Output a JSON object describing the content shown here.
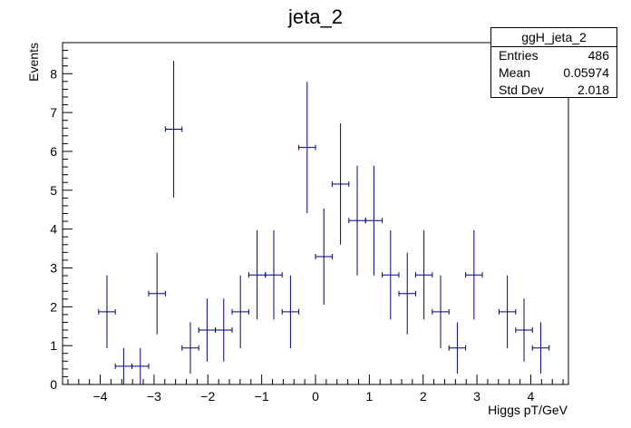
{
  "chart_data": {
    "type": "scatter",
    "title": "jeta_2",
    "xlabel": "Higgs pT/GeV",
    "ylabel": "Events",
    "xlim": [
      -4.7,
      4.7
    ],
    "ylim": [
      0,
      8.8
    ],
    "x_ticks": [
      -4,
      -3,
      -2,
      -1,
      0,
      1,
      2,
      3,
      4
    ],
    "y_ticks": [
      0,
      1,
      2,
      3,
      4,
      5,
      6,
      7,
      8
    ],
    "grid": false,
    "bin_half_width": 0.155,
    "series": [
      {
        "name": "ggH_jeta_2",
        "color": "#000080",
        "points": [
          {
            "x": -3.875,
            "y": 1.87,
            "err": 0.94
          },
          {
            "x": -3.565,
            "y": 0.47,
            "err": 0.47
          },
          {
            "x": -3.255,
            "y": 0.47,
            "err": 0.47
          },
          {
            "x": -2.945,
            "y": 2.34,
            "err": 1.05
          },
          {
            "x": -2.635,
            "y": 6.57,
            "err": 1.76
          },
          {
            "x": -2.325,
            "y": 0.94,
            "err": 0.66
          },
          {
            "x": -2.015,
            "y": 1.4,
            "err": 0.81
          },
          {
            "x": -1.705,
            "y": 1.4,
            "err": 0.81
          },
          {
            "x": -1.395,
            "y": 1.87,
            "err": 0.94
          },
          {
            "x": -1.085,
            "y": 2.82,
            "err": 1.15
          },
          {
            "x": -0.775,
            "y": 2.82,
            "err": 1.15
          },
          {
            "x": -0.465,
            "y": 1.87,
            "err": 0.94
          },
          {
            "x": -0.155,
            "y": 6.1,
            "err": 1.69
          },
          {
            "x": 0.155,
            "y": 3.29,
            "err": 1.24
          },
          {
            "x": 0.465,
            "y": 5.16,
            "err": 1.56
          },
          {
            "x": 0.775,
            "y": 4.22,
            "err": 1.41
          },
          {
            "x": 1.085,
            "y": 4.22,
            "err": 1.41
          },
          {
            "x": 1.395,
            "y": 2.82,
            "err": 1.15
          },
          {
            "x": 1.705,
            "y": 2.34,
            "err": 1.05
          },
          {
            "x": 2.015,
            "y": 2.82,
            "err": 1.15
          },
          {
            "x": 2.325,
            "y": 1.87,
            "err": 0.94
          },
          {
            "x": 2.635,
            "y": 0.94,
            "err": 0.66
          },
          {
            "x": 2.945,
            "y": 2.82,
            "err": 1.15
          },
          {
            "x": 3.565,
            "y": 1.87,
            "err": 0.94
          },
          {
            "x": 3.875,
            "y": 1.4,
            "err": 0.81
          },
          {
            "x": 4.185,
            "y": 0.94,
            "err": 0.66
          }
        ]
      }
    ],
    "stats": {
      "title": "ggH_jeta_2",
      "rows": [
        {
          "label": "Entries",
          "value": "486"
        },
        {
          "label": "Mean",
          "value": "0.05974"
        },
        {
          "label": "Std Dev",
          "value": "2.018"
        }
      ]
    }
  }
}
